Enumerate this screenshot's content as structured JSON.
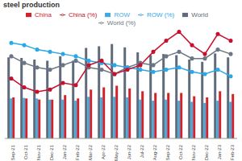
{
  "chart_data": {
    "type": "bar",
    "title": "steel production",
    "categories": [
      "Sep-21",
      "Oct-21",
      "Nov-21",
      "Dec-21",
      "Jan-22",
      "Feb-22",
      "Mar-22",
      "Apr-22",
      "May-22",
      "Jun-22",
      "Jul-22",
      "Aug-22",
      "Sep-22",
      "Oct-22",
      "Nov-22",
      "Dec-22",
      "Jan-23",
      "Feb-23"
    ],
    "ylim": [
      0,
      200
    ],
    "yticks": [
      0,
      50,
      100,
      150,
      200
    ],
    "y2lim": [
      -30,
      20
    ],
    "y2ticks": [
      -30,
      -20,
      -10,
      0,
      10,
      20
    ],
    "grid": false,
    "legend": "top",
    "tick_labels": "x",
    "series": [
      {
        "name": "World",
        "type": "bar",
        "color": "#5f6b7a",
        "values": [
          146,
          145,
          142,
          140,
          148,
          140,
          163,
          166,
          170,
          164,
          155,
          150,
          152,
          150,
          142,
          138,
          153,
          146
        ]
      },
      {
        "name": "ROW",
        "type": "bar",
        "color": "#3fa9e0",
        "values": [
          72,
          73,
          72,
          70,
          70,
          68,
          75,
          74,
          75,
          74,
          70,
          68,
          70,
          68,
          66,
          64,
          68,
          66
        ]
      },
      {
        "name": "China",
        "type": "bar",
        "color": "#d1232a",
        "values": [
          74,
          72,
          70,
          70,
          78,
          72,
          88,
          92,
          95,
          90,
          85,
          82,
          82,
          82,
          76,
          74,
          85,
          80
        ]
      },
      {
        "name": "World (%)",
        "type": "line",
        "axis": "y2",
        "marker": "circle",
        "color": "#6b7785",
        "values": [
          7,
          4,
          2,
          1,
          3,
          5,
          2,
          1,
          -1,
          2,
          4,
          3,
          7,
          9,
          6,
          6,
          10,
          8
        ]
      },
      {
        "name": "ROW (%)",
        "type": "line",
        "axis": "y2",
        "marker": "circle",
        "color": "#2aa8e8",
        "values": [
          13,
          12,
          10,
          9,
          8,
          7,
          5,
          4,
          3,
          2,
          1,
          0,
          1,
          2,
          0,
          -1,
          1,
          -2
        ]
      },
      {
        "name": "China (%)",
        "type": "line",
        "axis": "y2",
        "marker": "circle",
        "color": "#c8102e",
        "values": [
          -3,
          -7,
          -9,
          -8,
          -5,
          -6,
          3,
          5,
          -1,
          1,
          3,
          9,
          14,
          18,
          12,
          8,
          17,
          14
        ]
      }
    ]
  }
}
